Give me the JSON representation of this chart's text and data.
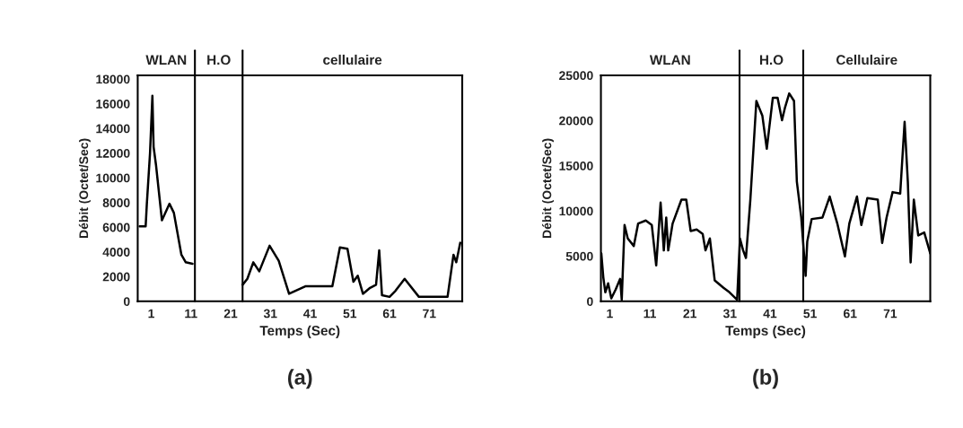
{
  "chart_data": [
    {
      "type": "line",
      "title": "(a)",
      "xlabel": "Temps (Sec)",
      "ylabel": "Débit (Octet/Sec)",
      "x": [
        -1.9,
        -0.4,
        -0.1,
        0.7,
        1.3,
        1.6,
        2.2,
        3.7,
        5.6,
        6.7,
        8.6,
        9.7,
        11.4,
        null,
        24.0,
        25.2,
        26.7,
        28.2,
        30.8,
        33.1,
        35.7,
        39.8,
        46.6,
        47.4,
        48.5,
        50.4,
        51.9,
        53.0,
        54.3,
        56.1,
        57.6,
        58.4,
        59.1,
        61.0,
        62.5,
        64.8,
        68.4,
        75.6,
        77.1,
        77.8,
        78.8
      ],
      "series": [
        {
          "color": "#000000",
          "values": [
            6075,
            6075,
            7900,
            12000,
            16650,
            12500,
            11050,
            6560,
            7900,
            7170,
            3770,
            3160,
            3040,
            null,
            1340,
            1820,
            3160,
            2430,
            4500,
            3280,
            610,
            1220,
            1220,
            2550,
            4370,
            4250,
            1580,
            2070,
            610,
            1090,
            1340,
            4130,
            490,
            360,
            850,
            1820,
            360,
            360,
            3770,
            3160,
            4740
          ]
        }
      ],
      "xlim": [
        -2.4,
        79.3
      ],
      "xticks": [
        1,
        11,
        21,
        31,
        41,
        51,
        61,
        71
      ],
      "ylim": [
        0,
        18300
      ],
      "yticks": [
        0,
        2000,
        4000,
        6000,
        8000,
        10000,
        12000,
        14000,
        16000,
        18000
      ],
      "ref_lines": [
        {
          "axis": "x",
          "value": 12,
          "color": "#000000"
        },
        {
          "axis": "x",
          "value": 24,
          "color": "#000000"
        }
      ],
      "annotations": [
        "WLAN",
        "H.O",
        "cellulaire"
      ],
      "grid": false,
      "legend": false
    },
    {
      "type": "line",
      "title": "(b)",
      "xlabel": "Temps (Sec)",
      "ylabel": "Débit (Octet/Sec)",
      "x": [
        -1.1,
        -0.6,
        -0.1,
        0.6,
        1.4,
        2.5,
        3.6,
        4.0,
        4.7,
        5.5,
        7.0,
        8.1,
        10.0,
        11.5,
        12.6,
        13.7,
        14.5,
        15.1,
        15.6,
        16.7,
        18.9,
        20.1,
        21.2,
        22.7,
        24.2,
        24.9,
        26.0,
        27.2,
        29.4,
        30.9,
        32.8,
        33.5,
        34.3,
        35.0,
        36.1,
        37.6,
        39.1,
        40.2,
        41.7,
        42.9,
        44.0,
        44.7,
        45.8,
        47.0,
        47.7,
        48.8,
        49.9,
        50.3,
        51.4,
        54.1,
        55.9,
        57.8,
        59.7,
        60.8,
        62.7,
        63.8,
        65.3,
        67.9,
        69.0,
        70.1,
        71.6,
        73.5,
        74.6,
        75.4,
        76.1,
        76.9,
        78.0,
        79.5,
        81.0
      ],
      "series": [
        {
          "color": "#000000",
          "values": [
            5300,
            2650,
            990,
            1990,
            330,
            1320,
            2480,
            170,
            8440,
            6950,
            6120,
            8610,
            8940,
            8440,
            3970,
            10920,
            5630,
            9270,
            5630,
            8610,
            11250,
            11250,
            7780,
            7940,
            7450,
            5630,
            6950,
            2320,
            1490,
            990,
            170,
            6950,
            5630,
            4800,
            11250,
            22170,
            20520,
            16880,
            22510,
            22510,
            20030,
            21350,
            23000,
            22170,
            13240,
            9270,
            2810,
            6620,
            9100,
            9270,
            11590,
            8610,
            4970,
            8610,
            11590,
            8440,
            11420,
            11250,
            6450,
            9270,
            12080,
            11920,
            19860,
            13240,
            4300,
            11250,
            7280,
            7610,
            5300
          ]
        }
      ],
      "xlim": [
        -1.2,
        81
      ],
      "xticks": [
        1,
        11,
        21,
        31,
        41,
        51,
        61,
        71
      ],
      "ylim": [
        0,
        25000
      ],
      "yticks": [
        0,
        5000,
        10000,
        15000,
        20000,
        25000
      ],
      "ref_lines": [
        {
          "axis": "x",
          "value": 33.4,
          "color": "#000000"
        },
        {
          "axis": "x",
          "value": 49.3,
          "color": "#000000"
        }
      ],
      "annotations": [
        "WLAN",
        "H.O",
        "Cellulaire"
      ],
      "grid": false,
      "legend": false
    }
  ]
}
